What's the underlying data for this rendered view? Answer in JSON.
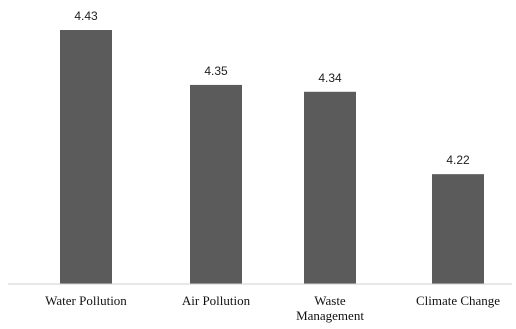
{
  "chart_data": {
    "type": "bar",
    "categories": [
      "Water Pollution",
      "Air Pollution",
      "Waste Management",
      "Climate Change"
    ],
    "category_lines": [
      [
        "Water Pollution"
      ],
      [
        "Air Pollution"
      ],
      [
        "Waste",
        "Management"
      ],
      [
        "Climate Change"
      ]
    ],
    "values": [
      4.43,
      4.35,
      4.34,
      4.22
    ],
    "value_labels": [
      "4.43",
      "4.35",
      "4.34",
      "4.22"
    ],
    "title": "",
    "xlabel": "",
    "ylabel": "",
    "grid": false,
    "bar_color": "#5b5b5b"
  }
}
